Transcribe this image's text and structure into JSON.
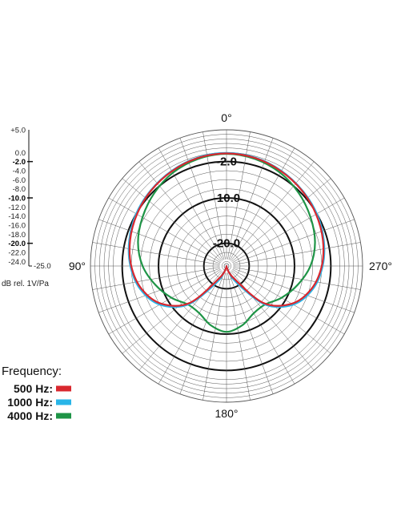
{
  "chart_data": {
    "type": "polar",
    "title": "",
    "units_label": "dB rel. 1V/Pa",
    "angle_labels": [
      "0°",
      "90°",
      "180°",
      "270°"
    ],
    "angle_label_angles_deg": [
      0,
      90,
      180,
      270
    ],
    "ring_labels": [
      "-2.0",
      "-10.0",
      "-20.0"
    ],
    "ring_label_values": [
      -2.0,
      -10.0,
      -20.0
    ],
    "r_range": [
      -25.0,
      5.0
    ],
    "grid": true,
    "scale": {
      "ticks": [
        "+5.0",
        "0.0",
        "-2.0",
        "-4.0",
        "-6.0",
        "-8.0",
        "-10.0",
        "-12.0",
        "-14.0",
        "-16.0",
        "-18.0",
        "-20.0",
        "-22.0",
        "-24.0",
        "-25.0"
      ],
      "values": [
        5,
        0,
        -2,
        -4,
        -6,
        -8,
        -10,
        -12,
        -14,
        -16,
        -18,
        -20,
        -22,
        -24,
        -25
      ],
      "bold_values": [
        -2,
        -10,
        -20
      ]
    },
    "bold_rings": [
      -2,
      -10,
      -20
    ],
    "legend": {
      "title": "Frequency:",
      "position": "bottom-left",
      "items": [
        {
          "label": "500 Hz:",
          "color": "#d9272e"
        },
        {
          "label": "1000 Hz:",
          "color": "#29b5e8"
        },
        {
          "label": "4000 Hz:",
          "color": "#1e9446"
        }
      ]
    },
    "series": [
      {
        "color": "#d9272e",
        "angles_deg": [
          0,
          15,
          30,
          45,
          60,
          75,
          90,
          105,
          120,
          135,
          150,
          165,
          180,
          195,
          210,
          225,
          240,
          255,
          270,
          285,
          300,
          315,
          330,
          345
        ],
        "values": [
          -0.2,
          -0.4,
          -0.9,
          -1.5,
          -2.2,
          -3.0,
          -4.0,
          -5.6,
          -8.4,
          -13.5,
          -22.0,
          -24.5,
          -25.0,
          -24.5,
          -22.0,
          -13.5,
          -8.4,
          -5.6,
          -4.0,
          -3.0,
          -2.2,
          -1.5,
          -0.9,
          -0.4
        ]
      },
      {
        "color": "#29b5e8",
        "angles_deg": [
          0,
          15,
          30,
          45,
          60,
          75,
          90,
          105,
          120,
          135,
          150,
          165,
          180,
          195,
          210,
          225,
          240,
          255,
          270,
          285,
          300,
          315,
          330,
          345
        ],
        "values": [
          -0.1,
          -0.3,
          -0.8,
          -1.4,
          -2.0,
          -2.8,
          -3.8,
          -5.3,
          -8.0,
          -13.0,
          -21.0,
          -24.5,
          -25.0,
          -24.5,
          -21.0,
          -13.0,
          -8.0,
          -5.3,
          -3.8,
          -2.8,
          -2.0,
          -1.4,
          -0.8,
          -0.3
        ]
      },
      {
        "color": "#1e9446",
        "angles_deg": [
          0,
          15,
          30,
          45,
          60,
          75,
          90,
          105,
          120,
          135,
          150,
          165,
          180,
          195,
          210,
          225,
          240,
          255,
          270,
          285,
          300,
          315,
          330,
          345
        ],
        "values": [
          -0.3,
          -0.6,
          -1.3,
          -2.4,
          -3.6,
          -4.8,
          -6.5,
          -8.8,
          -11.0,
          -13.0,
          -13.0,
          -11.5,
          -10.5,
          -11.5,
          -13.0,
          -13.0,
          -11.0,
          -8.8,
          -6.5,
          -4.8,
          -3.6,
          -2.4,
          -1.3,
          -0.6
        ]
      }
    ]
  }
}
